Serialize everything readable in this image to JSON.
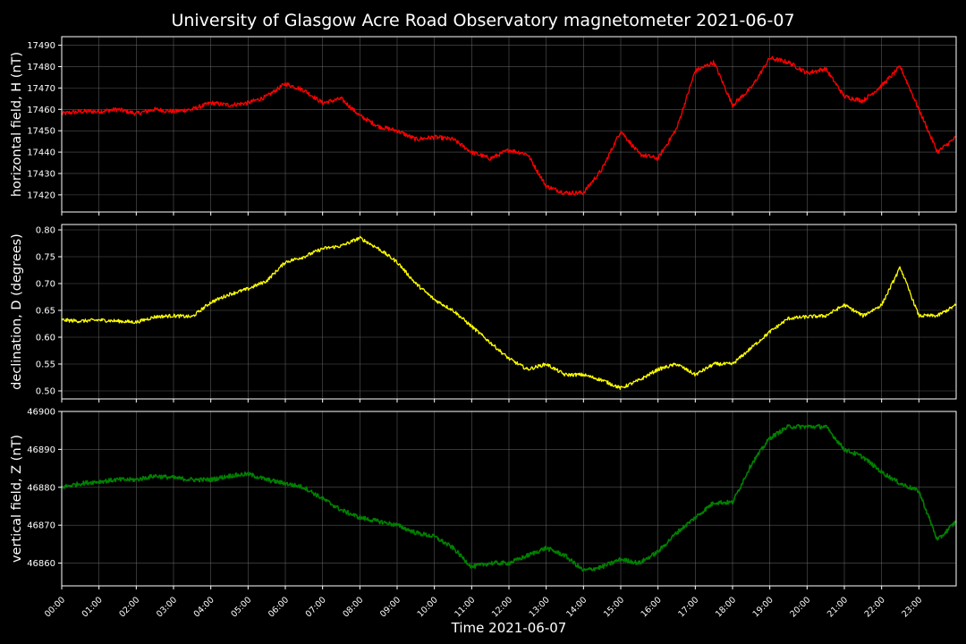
{
  "title": "University of Glasgow Acre Road Observatory magnetometer 2021-06-07",
  "xlabel": "Time 2021-06-07",
  "x_ticks": [
    "00:00",
    "01:00",
    "02:00",
    "03:00",
    "04:00",
    "05:00",
    "06:00",
    "07:00",
    "08:00",
    "09:00",
    "10:00",
    "11:00",
    "12:00",
    "13:00",
    "14:00",
    "15:00",
    "16:00",
    "17:00",
    "18:00",
    "19:00",
    "20:00",
    "21:00",
    "22:00",
    "23:00"
  ],
  "chart_data": [
    {
      "type": "line",
      "ylabel": "horizontal field, H (nT)",
      "color": "#ff0000",
      "ylim": [
        17412,
        17494
      ],
      "yticks": [
        17420,
        17430,
        17440,
        17450,
        17460,
        17470,
        17480,
        17490
      ],
      "grid": true,
      "x": [
        0,
        0.5,
        1,
        1.5,
        2,
        2.5,
        3,
        3.5,
        4,
        4.5,
        5,
        5.5,
        6,
        6.5,
        7,
        7.5,
        8,
        8.5,
        9,
        9.5,
        10,
        10.5,
        11,
        11.5,
        12,
        12.5,
        13,
        13.5,
        14,
        14.5,
        15,
        15.5,
        16,
        16.5,
        17,
        17.5,
        18,
        18.5,
        19,
        19.5,
        20,
        20.5,
        21,
        21.5,
        22,
        22.5,
        23,
        23.5,
        24
      ],
      "values": [
        17458,
        17459,
        17459,
        17460,
        17458,
        17460,
        17459,
        17460,
        17463,
        17462,
        17463,
        17466,
        17472,
        17469,
        17463,
        17465,
        17457,
        17452,
        17450,
        17446,
        17447,
        17446,
        17440,
        17437,
        17441,
        17439,
        17424,
        17421,
        17421,
        17432,
        17450,
        17439,
        17437,
        17451,
        17478,
        17482,
        17462,
        17470,
        17484,
        17482,
        17477,
        17479,
        17466,
        17464,
        17471,
        17480,
        17460,
        17440,
        17447
      ]
    },
    {
      "type": "line",
      "ylabel": "declination, D (degrees)",
      "color": "#ffff00",
      "ylim": [
        0.485,
        0.81
      ],
      "yticks": [
        0.5,
        0.55,
        0.6,
        0.65,
        0.7,
        0.75,
        0.8
      ],
      "tick_labels": [
        "0.50",
        "0.55",
        "0.60",
        "0.65",
        "0.70",
        "0.75",
        "0.80"
      ],
      "grid": true,
      "x": [
        0,
        0.5,
        1,
        1.5,
        2,
        2.5,
        3,
        3.5,
        4,
        4.5,
        5,
        5.5,
        6,
        6.5,
        7,
        7.5,
        8,
        8.5,
        9,
        9.5,
        10,
        10.5,
        11,
        11.5,
        12,
        12.5,
        13,
        13.5,
        14,
        14.5,
        15,
        15.5,
        16,
        16.5,
        17,
        17.5,
        18,
        18.5,
        19,
        19.5,
        20,
        20.5,
        21,
        21.5,
        22,
        22.5,
        23,
        23.5,
        24
      ],
      "values": [
        0.632,
        0.63,
        0.632,
        0.63,
        0.628,
        0.638,
        0.64,
        0.638,
        0.665,
        0.68,
        0.69,
        0.705,
        0.74,
        0.75,
        0.765,
        0.77,
        0.785,
        0.765,
        0.74,
        0.7,
        0.67,
        0.65,
        0.62,
        0.59,
        0.56,
        0.54,
        0.55,
        0.53,
        0.53,
        0.52,
        0.505,
        0.52,
        0.54,
        0.55,
        0.53,
        0.55,
        0.55,
        0.58,
        0.61,
        0.635,
        0.638,
        0.64,
        0.66,
        0.64,
        0.66,
        0.73,
        0.64,
        0.64,
        0.66
      ]
    },
    {
      "type": "line",
      "ylabel": "vertical field, Z (nT)",
      "color": "#008000",
      "ylim": [
        46854,
        46900
      ],
      "yticks": [
        46860,
        46870,
        46880,
        46890,
        46900
      ],
      "grid": true,
      "x": [
        0,
        0.5,
        1,
        1.5,
        2,
        2.5,
        3,
        3.5,
        4,
        4.5,
        5,
        5.5,
        6,
        6.5,
        7,
        7.5,
        8,
        8.5,
        9,
        9.5,
        10,
        10.5,
        11,
        11.5,
        12,
        12.5,
        13,
        13.5,
        14,
        14.5,
        15,
        15.5,
        16,
        16.5,
        17,
        17.5,
        18,
        18.5,
        19,
        19.5,
        20,
        20.5,
        21,
        21.5,
        22,
        22.5,
        23,
        23.5,
        24
      ],
      "values": [
        46880,
        46881,
        46881.5,
        46882,
        46882,
        46883,
        46882.5,
        46882,
        46882,
        46883,
        46883.5,
        46882,
        46881,
        46880,
        46877,
        46874,
        46872,
        46871,
        46870,
        46868,
        46867,
        46864,
        46859,
        46860,
        46860,
        46862,
        46864,
        46862,
        46858,
        46859,
        46861,
        46860,
        46863,
        46868,
        46872,
        46876,
        46876,
        46886,
        46893,
        46896,
        46896,
        46896,
        46890,
        46888,
        46884,
        46881,
        46879,
        46866,
        46871
      ]
    }
  ]
}
